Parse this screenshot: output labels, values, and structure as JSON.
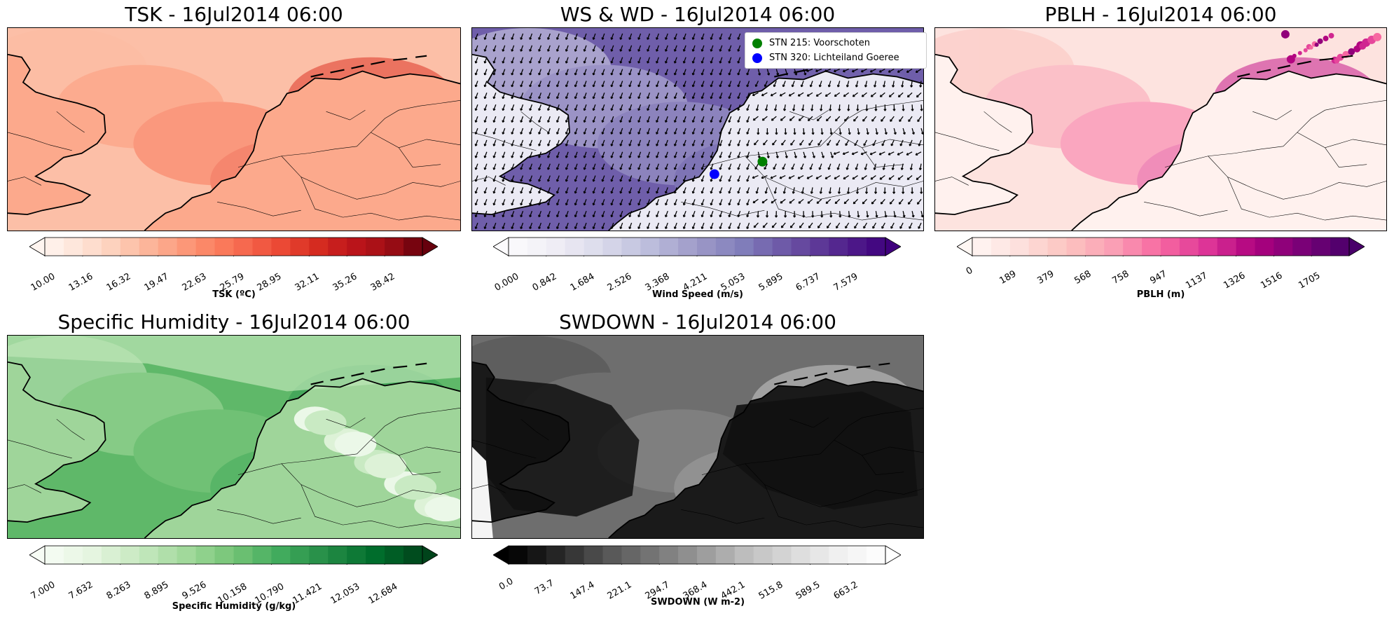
{
  "chart_data": [
    {
      "type": "heatmap",
      "title": "TSK - 16Jul2014 06:00",
      "colorbar_label": "TSK (ºC)",
      "ticks": [
        "10.00",
        "13.16",
        "16.32",
        "19.47",
        "22.63",
        "25.79",
        "28.95",
        "32.11",
        "35.26",
        "38.42"
      ],
      "colormap": [
        "#fff5f0",
        "#fee4d8",
        "#fdd0bc",
        "#fcb69b",
        "#fc9a7b",
        "#fb7f5f",
        "#f5634a",
        "#e94532",
        "#d42a20",
        "#bc141a",
        "#a00f15",
        "#67000d"
      ],
      "extend": "both",
      "color_levels": 20,
      "base_color": "#fcbfa7",
      "land_color": "#fca98c"
    },
    {
      "type": "heatmap",
      "title": "WS & WD - 16Jul2014 06:00",
      "colorbar_label": "Wind Speed (m/s)",
      "ticks": [
        "0.000",
        "0.842",
        "1.684",
        "2.526",
        "3.368",
        "4.211",
        "5.053",
        "5.895",
        "6.737",
        "7.579"
      ],
      "colormap": [
        "#fcfbfd",
        "#efedf5",
        "#dadaeb",
        "#bcbddc",
        "#9e9ac8",
        "#807dba",
        "#6a51a3",
        "#54278f",
        "#3f007d"
      ],
      "extend": "max",
      "color_levels": 20,
      "base_color": "#6f5eaa",
      "land_color": "#ebeaf4",
      "overlay": "wind-vectors",
      "legend": [
        {
          "label": "STN 215: Voorschoten",
          "color": "#008000"
        },
        {
          "label": "STN 320: Lichteiland Goeree",
          "color": "#0000ff"
        }
      ]
    },
    {
      "type": "heatmap",
      "title": "PBLH - 16Jul2014 06:00",
      "colorbar_label": "PBLH (m)",
      "ticks": [
        "0",
        "189",
        "379",
        "568",
        "758",
        "947",
        "1137",
        "1326",
        "1516",
        "1705"
      ],
      "colormap": [
        "#fff7f3",
        "#fde0dd",
        "#fcc5c0",
        "#fa9fb5",
        "#f768a1",
        "#dd3497",
        "#ae017e",
        "#7a0177",
        "#49006a"
      ],
      "extend": "both",
      "color_levels": 20,
      "base_color": "#fde3df",
      "land_color": "#fff1ee"
    },
    {
      "type": "heatmap",
      "title": "Specific Humidity - 16Jul2014 06:00",
      "colorbar_label": "Specific Humidity (g/kg)",
      "ticks": [
        "7.000",
        "7.632",
        "8.263",
        "8.895",
        "9.526",
        "10.158",
        "10.790",
        "11.421",
        "12.053",
        "12.684"
      ],
      "colormap": [
        "#f7fcf5",
        "#e5f5e0",
        "#c7e9c0",
        "#a1d99b",
        "#74c476",
        "#41ab5d",
        "#238b45",
        "#006d2c",
        "#00441b"
      ],
      "extend": "both",
      "color_levels": 20,
      "base_color": "#5fb869",
      "land_color": "#9fd59a"
    },
    {
      "type": "heatmap",
      "title": "SWDOWN - 16Jul2014 06:00",
      "colorbar_label": "SWDOWN (W m-2)",
      "ticks": [
        "0.0",
        "73.7",
        "147.4",
        "221.1",
        "294.7",
        "368.4",
        "442.1",
        "515.8",
        "589.5",
        "663.2"
      ],
      "colormap": [
        "#000000",
        "#252525",
        "#525252",
        "#737373",
        "#969696",
        "#bdbdbd",
        "#d9d9d9",
        "#f0f0f0",
        "#ffffff"
      ],
      "extend": "both",
      "color_levels": 20,
      "base_color": "#6e6e6e",
      "land_color": "#1a1a1a"
    }
  ]
}
